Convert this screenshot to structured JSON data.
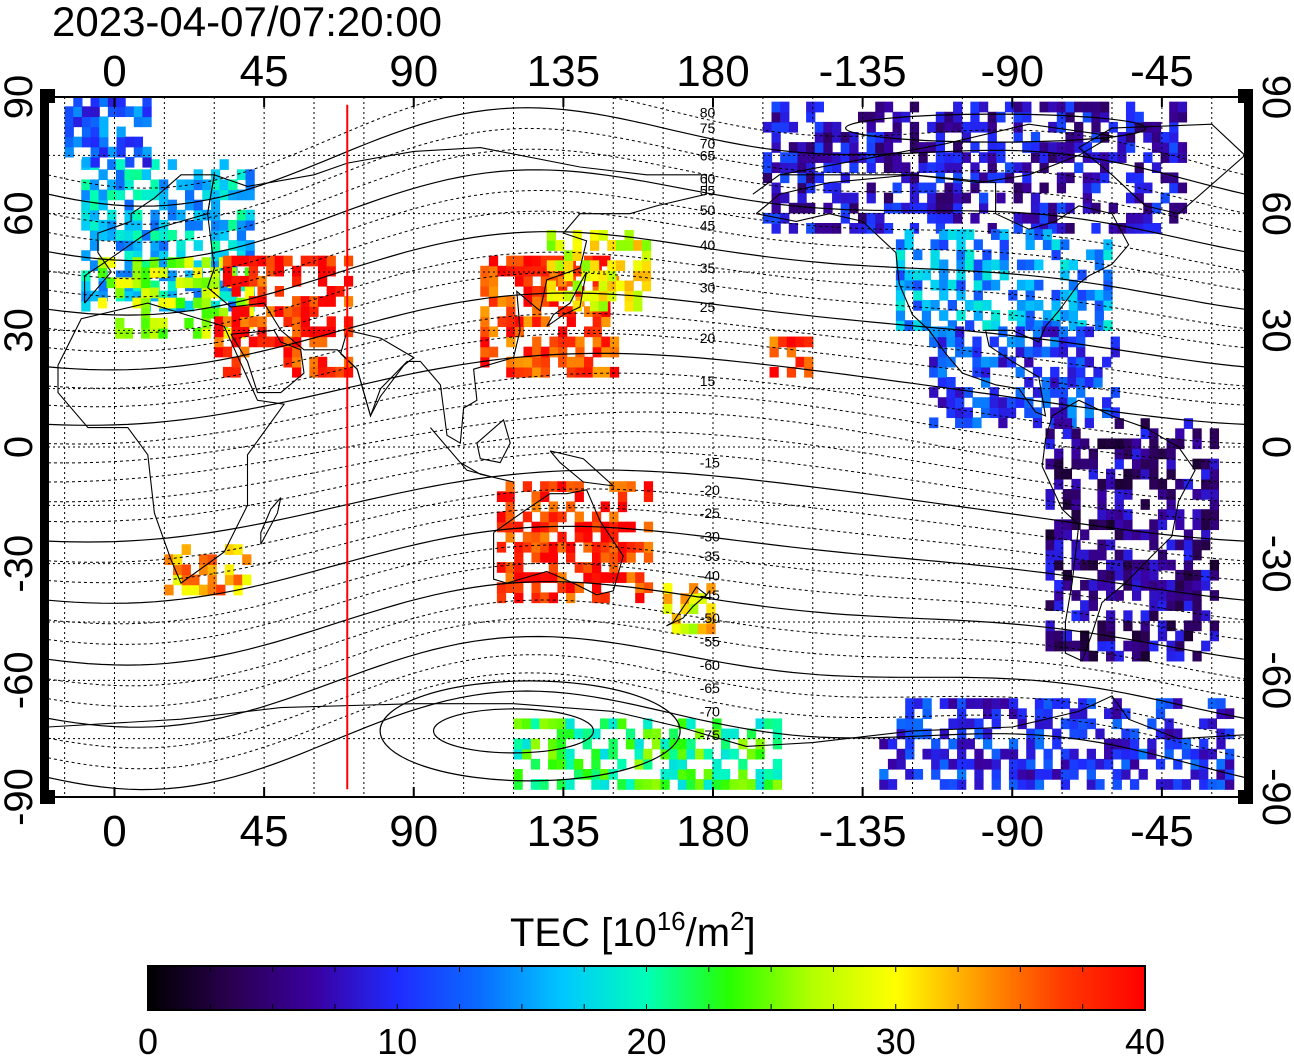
{
  "timestamp": "2023-04-07/07:20:00",
  "map": {
    "longitude_labels": [
      "0",
      "45",
      "90",
      "135",
      "180",
      "-135",
      "-90",
      "-45"
    ],
    "longitude_values": [
      0,
      45,
      90,
      135,
      180,
      225,
      270,
      315
    ],
    "latitude_labels": [
      "90",
      "60",
      "30",
      "0",
      "-30",
      "-60",
      "-90"
    ],
    "latitude_values": [
      90,
      60,
      30,
      0,
      -30,
      -60,
      -90
    ],
    "lon_range": [
      -20,
      340
    ],
    "lat_range": [
      -90,
      90
    ],
    "red_meridian_lon": 70,
    "magnetic_latitude_labels": [
      "80",
      "75",
      "70",
      "65",
      "60",
      "55",
      "50",
      "45",
      "40",
      "35",
      "30",
      "25",
      "20",
      "15",
      "-15",
      "-20",
      "-25",
      "-30",
      "-35",
      "-40",
      "-45",
      "-50",
      "-55",
      "-60",
      "-65",
      "-70",
      "-75"
    ],
    "magnetic_latitude_label_lat": [
      86,
      82,
      78,
      75,
      69,
      66,
      61,
      57,
      52,
      46,
      41,
      36,
      28,
      17,
      -4,
      -11,
      -17,
      -23,
      -28,
      -33,
      -38,
      -44,
      -50,
      -56,
      -62,
      -68,
      -74
    ]
  },
  "colorbar": {
    "title_main": "TEC  [10",
    "title_sup1": "16",
    "title_mid": "/m",
    "title_sup2": "2",
    "title_end": "]",
    "tick_labels": [
      "0",
      "10",
      "20",
      "30",
      "40"
    ],
    "min": 0,
    "max": 40,
    "colors": [
      "#000000",
      "#2a0050",
      "#3a00a0",
      "#1f2bff",
      "#0a6cff",
      "#00c8ff",
      "#00ffb8",
      "#28ff00",
      "#b4ff00",
      "#ffff00",
      "#ff9a00",
      "#ff3a00",
      "#ff0000"
    ]
  },
  "tec_patches": [
    {
      "region": "scandinavia-europe",
      "lon": [
        -10,
        40
      ],
      "lat": [
        35,
        72
      ],
      "tec": 17
    },
    {
      "region": "mediterranean",
      "lon": [
        -5,
        40
      ],
      "lat": [
        28,
        48
      ],
      "tec": 27
    },
    {
      "region": "greenland-north",
      "lon": [
        -15,
        10
      ],
      "lat": [
        72,
        88
      ],
      "tec": 12
    },
    {
      "region": "middle-east",
      "lon": [
        30,
        70
      ],
      "lat": [
        18,
        48
      ],
      "tec": 38
    },
    {
      "region": "east-asia",
      "lon": [
        110,
        150
      ],
      "lat": [
        18,
        48
      ],
      "tec": 37
    },
    {
      "region": "japan-kamchatka",
      "lon": [
        130,
        160
      ],
      "lat": [
        35,
        55
      ],
      "tec": 29
    },
    {
      "region": "south-africa",
      "lon": [
        15,
        40
      ],
      "lat": [
        -38,
        -25
      ],
      "tec": 33
    },
    {
      "region": "australia",
      "lon": [
        115,
        160
      ],
      "lat": [
        -40,
        -10
      ],
      "tec": 38
    },
    {
      "region": "new-zealand",
      "lon": [
        165,
        180
      ],
      "lat": [
        -48,
        -35
      ],
      "tec": 30
    },
    {
      "region": "hawaii",
      "lon": [
        197,
        208
      ],
      "lat": [
        18,
        26
      ],
      "tec": 37
    },
    {
      "region": "north-america-north",
      "lon": [
        195,
        320
      ],
      "lat": [
        55,
        88
      ],
      "tec": 8
    },
    {
      "region": "north-america-mid",
      "lon": [
        235,
        300
      ],
      "lat": [
        30,
        55
      ],
      "tec": 15
    },
    {
      "region": "central-america",
      "lon": [
        245,
        300
      ],
      "lat": [
        5,
        30
      ],
      "tec": 11
    },
    {
      "region": "south-america",
      "lon": [
        280,
        330
      ],
      "lat": [
        -55,
        5
      ],
      "tec": 6
    },
    {
      "region": "antarctica-pacific",
      "lon": [
        120,
        200
      ],
      "lat": [
        -88,
        -70
      ],
      "tec": 22
    },
    {
      "region": "antarctica-atlantic",
      "lon": [
        230,
        335
      ],
      "lat": [
        -88,
        -65
      ],
      "tec": 10
    }
  ]
}
